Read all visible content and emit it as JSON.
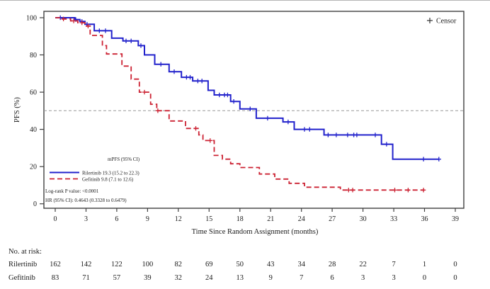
{
  "figure": {
    "censor_legend": "Censor",
    "legend_title": "mPFS (95% CI)",
    "logrank": "Log-rank P value: <0.0001",
    "hazard_ratio": "HR (95% CI): 0.4643 (0.3328 to 0.6479)"
  },
  "chart_data": {
    "type": "line",
    "subtype": "kaplan_meier_step",
    "title": "",
    "xlabel": "Time Since Random Assignment (months)",
    "ylabel": "PFS (%)",
    "xlim": [
      0,
      39
    ],
    "ylim": [
      0,
      100
    ],
    "x_ticks": [
      0,
      3,
      6,
      9,
      12,
      15,
      18,
      21,
      24,
      27,
      30,
      33,
      36,
      39
    ],
    "y_ticks": [
      0,
      20,
      40,
      60,
      80,
      100
    ],
    "grid": false,
    "reference_line": {
      "y": 50,
      "style": "dashed",
      "color": "#999999"
    },
    "legend_position": "inside-bottom-left",
    "colors": {
      "rilertinib": "#2222cc",
      "gefitinib": "#cc2233",
      "axis": "#404040",
      "reference": "#999999"
    },
    "series": [
      {
        "name": "Rilertinib",
        "color": "#2222cc",
        "line_style": "solid",
        "median_pfs": "19.3 (15.2 to 22.3)",
        "legend_label": "Rilertinib 19.3 (15.2 to 22.3)",
        "steps": [
          [
            0,
            100
          ],
          [
            1.9,
            99
          ],
          [
            2.4,
            98
          ],
          [
            2.9,
            96.5
          ],
          [
            3.8,
            93
          ],
          [
            5.5,
            89
          ],
          [
            6.6,
            87.5
          ],
          [
            8.1,
            85
          ],
          [
            8.7,
            80
          ],
          [
            9.7,
            75
          ],
          [
            11.1,
            71
          ],
          [
            12.3,
            68
          ],
          [
            13.4,
            66
          ],
          [
            14.9,
            61
          ],
          [
            15.5,
            58.5
          ],
          [
            17.1,
            55
          ],
          [
            18.0,
            51
          ],
          [
            19.6,
            46
          ],
          [
            22.2,
            44
          ],
          [
            23.3,
            40
          ],
          [
            26.2,
            37
          ],
          [
            31.8,
            32
          ],
          [
            32.9,
            24
          ],
          [
            37.4,
            24
          ]
        ],
        "censors": [
          [
            0.5,
            100
          ],
          [
            2.0,
            99
          ],
          [
            2.6,
            98
          ],
          [
            3.1,
            96.5
          ],
          [
            4.3,
            93
          ],
          [
            4.9,
            93
          ],
          [
            6.9,
            87.5
          ],
          [
            7.4,
            87.5
          ],
          [
            8.35,
            85
          ],
          [
            10.3,
            75
          ],
          [
            11.6,
            71
          ],
          [
            12.8,
            68
          ],
          [
            13.15,
            68
          ],
          [
            13.9,
            66
          ],
          [
            14.3,
            66
          ],
          [
            16.0,
            58.5
          ],
          [
            16.5,
            58.5
          ],
          [
            16.8,
            58.5
          ],
          [
            17.4,
            55
          ],
          [
            19.0,
            51
          ],
          [
            20.7,
            46
          ],
          [
            22.7,
            44
          ],
          [
            24.3,
            40
          ],
          [
            24.8,
            40
          ],
          [
            26.6,
            37
          ],
          [
            27.4,
            37
          ],
          [
            28.5,
            37
          ],
          [
            29.1,
            37
          ],
          [
            29.4,
            37
          ],
          [
            31.2,
            37
          ],
          [
            32.3,
            32
          ],
          [
            35.9,
            24
          ],
          [
            37.4,
            24
          ]
        ]
      },
      {
        "name": "Gefitinib",
        "color": "#cc2233",
        "line_style": "dashed",
        "median_pfs": "9.8 (7.1 to 12.6)",
        "legend_label": "Gefitinib 9.8 (7.1 to 12.6)",
        "steps": [
          [
            0,
            100
          ],
          [
            0.6,
            99.3
          ],
          [
            1.5,
            98.3
          ],
          [
            2.2,
            97.3
          ],
          [
            2.9,
            95.5
          ],
          [
            3.4,
            90.5
          ],
          [
            4.6,
            85
          ],
          [
            5.0,
            80.5
          ],
          [
            6.5,
            74
          ],
          [
            7.4,
            67
          ],
          [
            8.2,
            60
          ],
          [
            9.3,
            53.5
          ],
          [
            9.9,
            50
          ],
          [
            11.1,
            44.5
          ],
          [
            12.7,
            40.5
          ],
          [
            14.0,
            37
          ],
          [
            14.4,
            34
          ],
          [
            15.5,
            26
          ],
          [
            16.3,
            24
          ],
          [
            17.1,
            21.5
          ],
          [
            18.0,
            19.5
          ],
          [
            19.9,
            16
          ],
          [
            21.4,
            13.3
          ],
          [
            22.8,
            11
          ],
          [
            24.3,
            8.9
          ],
          [
            27.8,
            7.4
          ],
          [
            36.0,
            7.4
          ]
        ],
        "censors": [
          [
            0.8,
            99.3
          ],
          [
            1.8,
            98.3
          ],
          [
            2.6,
            97.3
          ],
          [
            3.2,
            95.5
          ],
          [
            8.7,
            60
          ],
          [
            10.0,
            50
          ],
          [
            13.7,
            40.5
          ],
          [
            15.1,
            34
          ],
          [
            28.6,
            7.4
          ],
          [
            29.0,
            7.4
          ],
          [
            33.1,
            7.4
          ],
          [
            34.4,
            7.4
          ],
          [
            35.9,
            7.4
          ]
        ]
      }
    ],
    "risk_table": {
      "label": "No. at risk:",
      "timepoints": [
        0,
        3,
        6,
        9,
        12,
        15,
        18,
        21,
        24,
        27,
        30,
        33,
        36,
        39
      ],
      "rows": [
        {
          "name": "Rilertinib",
          "values": [
            162,
            142,
            122,
            100,
            82,
            69,
            50,
            43,
            34,
            28,
            22,
            7,
            1,
            0
          ]
        },
        {
          "name": "Gefitinib",
          "values": [
            83,
            71,
            57,
            39,
            32,
            24,
            13,
            9,
            7,
            6,
            3,
            3,
            0,
            0
          ]
        }
      ]
    }
  }
}
